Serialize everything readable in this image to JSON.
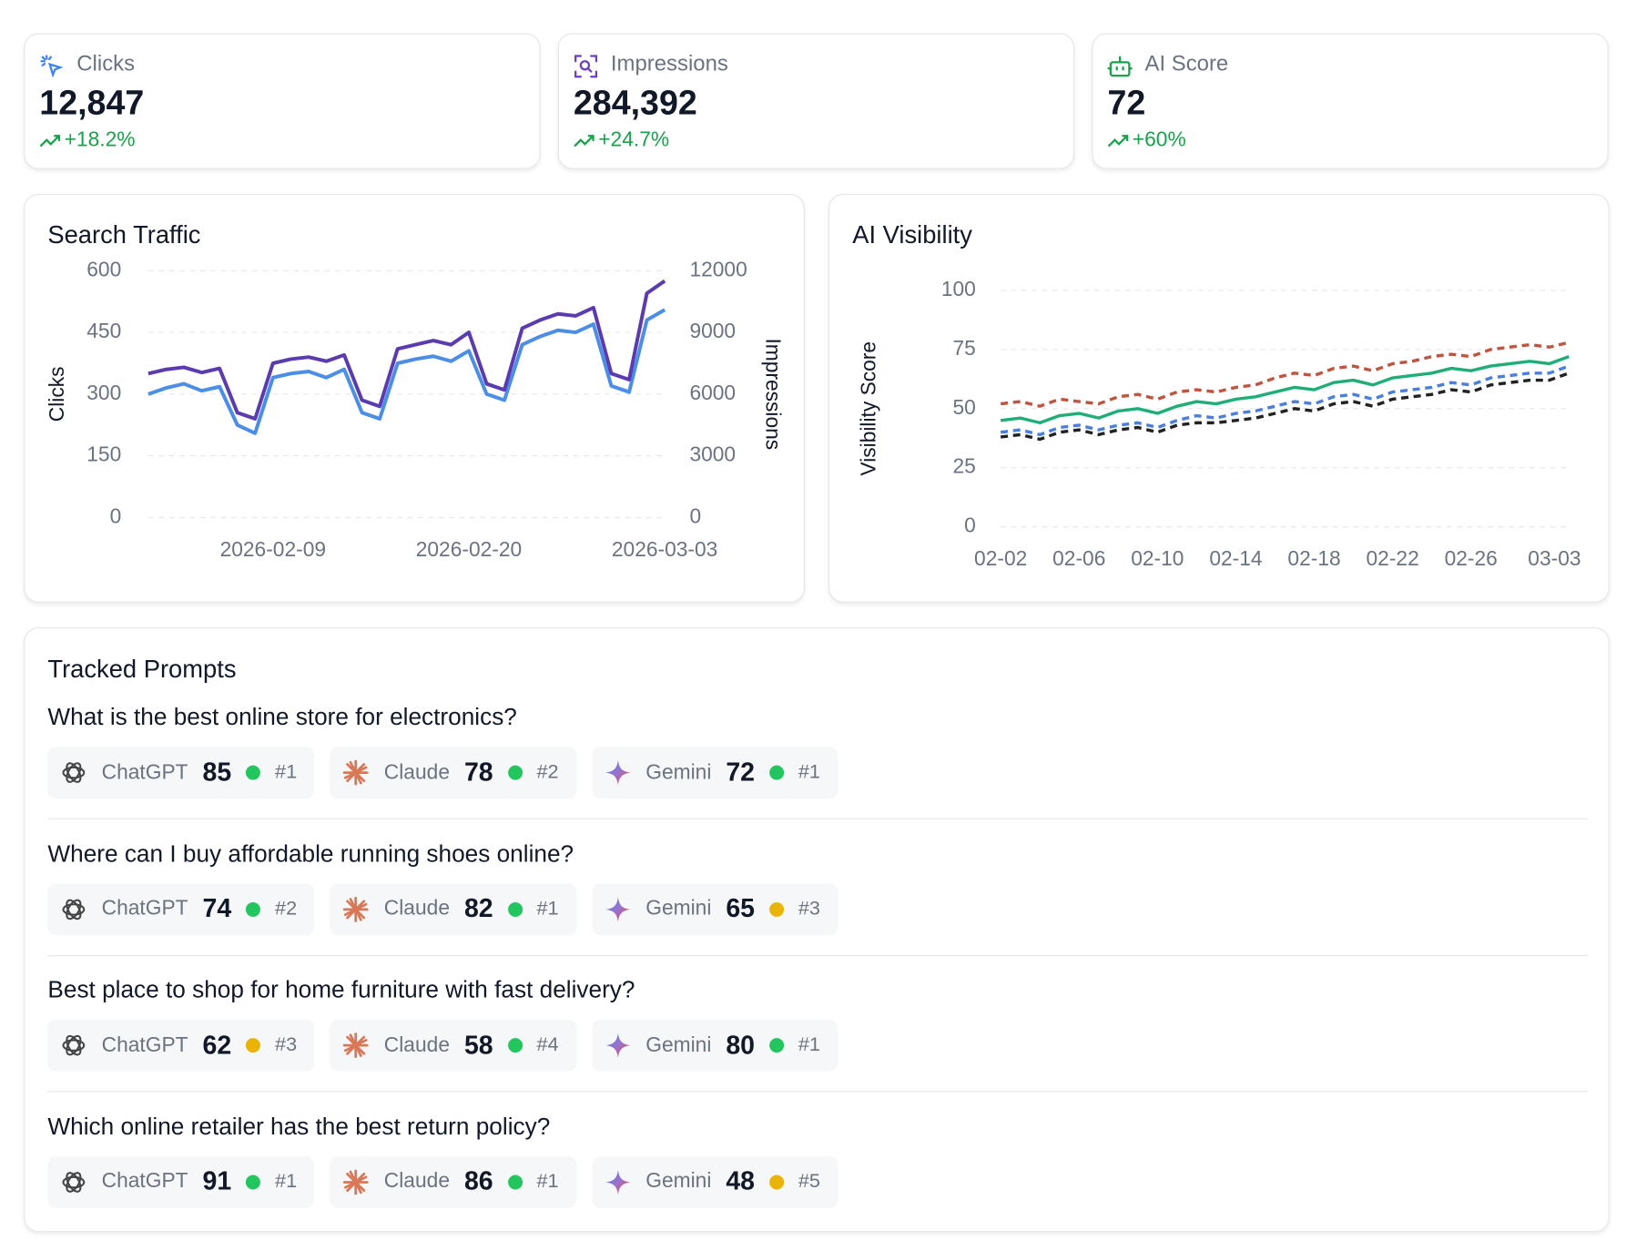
{
  "kpis": [
    {
      "label": "Clicks",
      "value": "12,847",
      "change": "+18.2%"
    },
    {
      "label": "Impressions",
      "value": "284,392",
      "change": "+24.7%"
    },
    {
      "label": "AI Score",
      "value": "72",
      "change": "+60%"
    }
  ],
  "chart_data": [
    {
      "type": "line",
      "title": "Search Traffic",
      "ylabel": "Clicks",
      "y2label": "Impressions",
      "categories": [
        null,
        null,
        null,
        null,
        null,
        null,
        null,
        "2026-02-09",
        null,
        null,
        null,
        null,
        null,
        null,
        null,
        null,
        null,
        null,
        "2026-02-20",
        null,
        null,
        null,
        null,
        null,
        null,
        null,
        null,
        null,
        null,
        "2026-03-03"
      ],
      "series": [
        {
          "color": "#4a8ee8",
          "values": [
            300,
            315,
            325,
            308,
            318,
            225,
            205,
            340,
            350,
            355,
            340,
            360,
            255,
            240,
            375,
            385,
            392,
            380,
            405,
            300,
            285,
            420,
            440,
            455,
            450,
            470,
            320,
            305,
            480,
            505
          ]
        },
        {
          "color": "#5b3bb0",
          "axis": "y2",
          "values": [
            7000,
            7200,
            7300,
            7050,
            7250,
            5100,
            4800,
            7500,
            7700,
            7800,
            7600,
            7900,
            5700,
            5400,
            8200,
            8400,
            8600,
            8400,
            9000,
            6500,
            6200,
            9200,
            9600,
            9900,
            9800,
            10200,
            7000,
            6700,
            10900,
            11500
          ]
        }
      ],
      "ylim": [
        0,
        600
      ],
      "yticks": [
        0,
        150,
        300,
        450,
        600
      ],
      "y2lim": [
        0,
        12000
      ],
      "y2ticks": [
        0,
        3000,
        6000,
        9000,
        12000
      ],
      "grid": true
    },
    {
      "type": "line",
      "title": "AI Visibility",
      "ylabel": "Visibility Score",
      "categories": [
        "02-02",
        null,
        null,
        null,
        "02-06",
        null,
        null,
        null,
        "02-10",
        null,
        null,
        null,
        "02-14",
        null,
        null,
        null,
        "02-18",
        null,
        null,
        null,
        "02-22",
        null,
        null,
        null,
        "02-26",
        null,
        null,
        null,
        null,
        "03-03"
      ],
      "series": [
        {
          "color": "#c0553f",
          "dash": true,
          "values": [
            52,
            53,
            51,
            54,
            53,
            52,
            55,
            56,
            54,
            57,
            58,
            57,
            59,
            60,
            63,
            65,
            64,
            67,
            68,
            66,
            69,
            70,
            72,
            73,
            72,
            75,
            76,
            77,
            76,
            78
          ]
        },
        {
          "color": "#1fae78",
          "dash": false,
          "values": [
            45,
            46,
            44,
            47,
            48,
            46,
            49,
            50,
            48,
            51,
            53,
            52,
            54,
            55,
            57,
            59,
            58,
            61,
            62,
            60,
            63,
            64,
            65,
            67,
            66,
            68,
            69,
            70,
            69,
            72
          ]
        },
        {
          "color": "#4a7fe0",
          "dash": true,
          "values": [
            40,
            41,
            39,
            42,
            43,
            41,
            43,
            44,
            42,
            45,
            47,
            46,
            48,
            49,
            51,
            53,
            52,
            55,
            56,
            54,
            57,
            58,
            59,
            61,
            60,
            63,
            64,
            65,
            65,
            68
          ]
        },
        {
          "color": "#222222",
          "dash": true,
          "values": [
            38,
            39,
            37,
            40,
            41,
            39,
            41,
            42,
            40,
            43,
            44,
            44,
            45,
            46,
            48,
            50,
            49,
            52,
            53,
            51,
            54,
            55,
            56,
            58,
            57,
            60,
            61,
            62,
            62,
            65
          ]
        }
      ],
      "ylim": [
        0,
        100
      ],
      "yticks": [
        0,
        25,
        50,
        75,
        100
      ],
      "grid": true
    }
  ],
  "prompts": {
    "title": "Tracked Prompts",
    "items": [
      {
        "question": "What is the best online store for electronics?",
        "results": [
          {
            "engine": "ChatGPT",
            "score": 85,
            "status_color": "#22c55e",
            "rank": "#1"
          },
          {
            "engine": "Claude",
            "score": 78,
            "status_color": "#22c55e",
            "rank": "#2"
          },
          {
            "engine": "Gemini",
            "score": 72,
            "status_color": "#22c55e",
            "rank": "#1"
          }
        ]
      },
      {
        "question": "Where can I buy affordable running shoes online?",
        "results": [
          {
            "engine": "ChatGPT",
            "score": 74,
            "status_color": "#22c55e",
            "rank": "#2"
          },
          {
            "engine": "Claude",
            "score": 82,
            "status_color": "#22c55e",
            "rank": "#1"
          },
          {
            "engine": "Gemini",
            "score": 65,
            "status_color": "#eab308",
            "rank": "#3"
          }
        ]
      },
      {
        "question": "Best place to shop for home furniture with fast delivery?",
        "results": [
          {
            "engine": "ChatGPT",
            "score": 62,
            "status_color": "#eab308",
            "rank": "#3"
          },
          {
            "engine": "Claude",
            "score": 58,
            "status_color": "#22c55e",
            "rank": "#4"
          },
          {
            "engine": "Gemini",
            "score": 80,
            "status_color": "#22c55e",
            "rank": "#1"
          }
        ]
      },
      {
        "question": "Which online retailer has the best return policy?",
        "results": [
          {
            "engine": "ChatGPT",
            "score": 91,
            "status_color": "#22c55e",
            "rank": "#1"
          },
          {
            "engine": "Claude",
            "score": 86,
            "status_color": "#22c55e",
            "rank": "#1"
          },
          {
            "engine": "Gemini",
            "score": 48,
            "status_color": "#eab308",
            "rank": "#5"
          }
        ]
      }
    ]
  }
}
